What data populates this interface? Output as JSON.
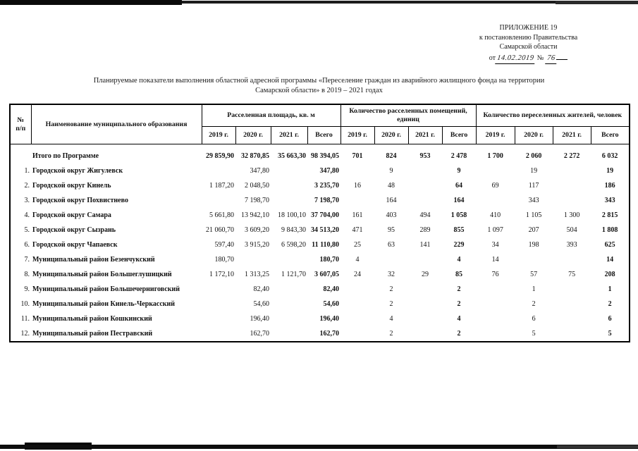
{
  "header_block": {
    "line1": "ПРИЛОЖЕНИЕ 19",
    "line2": "к постановлению Правительства",
    "line3": "Самарской области",
    "date_prefix": "от",
    "date_handwritten": "14.02.2019",
    "number_sign": "№",
    "number_handwritten": "76"
  },
  "title": {
    "line1": "Планируемые показатели выполнения областной адресной программы «Переселение граждан из аварийного жилищного фонда на территории",
    "line2": "Самарской области» в 2019 – 2021 годах"
  },
  "table": {
    "col_num_line1": "№",
    "col_num_line2": "п/п",
    "col_name": "Наименование муниципального образования",
    "groups": [
      "Расселенная площадь, кв. м",
      "Количество расселенных помещений, единиц",
      "Количество переселенных жителей, человек"
    ],
    "years": [
      "2019 г.",
      "2020 г.",
      "2021 г.",
      "Всего"
    ],
    "total_row": {
      "num": "",
      "name": "Итого по Программе",
      "values": [
        "29 859,90",
        "32 870,85",
        "35 663,30",
        "98 394,05",
        "701",
        "824",
        "953",
        "2 478",
        "1 700",
        "2 060",
        "2 272",
        "6 032"
      ]
    },
    "rows": [
      {
        "num": "1.",
        "name": "Городской округ Жигулевск",
        "values": [
          "",
          "347,80",
          "",
          "347,80",
          "",
          "9",
          "",
          "9",
          "",
          "19",
          "",
          "19"
        ]
      },
      {
        "num": "2.",
        "name": "Городской округ Кинель",
        "values": [
          "1 187,20",
          "2 048,50",
          "",
          "3 235,70",
          "16",
          "48",
          "",
          "64",
          "69",
          "117",
          "",
          "186"
        ]
      },
      {
        "num": "3.",
        "name": "Городской округ Похвистнево",
        "values": [
          "",
          "7 198,70",
          "",
          "7 198,70",
          "",
          "164",
          "",
          "164",
          "",
          "343",
          "",
          "343"
        ]
      },
      {
        "num": "4.",
        "name": "Городской округ Самара",
        "values": [
          "5 661,80",
          "13 942,10",
          "18 100,10",
          "37 704,00",
          "161",
          "403",
          "494",
          "1 058",
          "410",
          "1 105",
          "1 300",
          "2 815"
        ]
      },
      {
        "num": "5.",
        "name": "Городской округ Сызрань",
        "values": [
          "21 060,70",
          "3 609,20",
          "9 843,30",
          "34 513,20",
          "471",
          "95",
          "289",
          "855",
          "1 097",
          "207",
          "504",
          "1 808"
        ]
      },
      {
        "num": "6.",
        "name": "Городской округ Чапаевск",
        "values": [
          "597,40",
          "3 915,20",
          "6 598,20",
          "11 110,80",
          "25",
          "63",
          "141",
          "229",
          "34",
          "198",
          "393",
          "625"
        ]
      },
      {
        "num": "7.",
        "name": "Муниципальный район Безенчукский",
        "values": [
          "180,70",
          "",
          "",
          "180,70",
          "4",
          "",
          "",
          "4",
          "14",
          "",
          "",
          "14"
        ]
      },
      {
        "num": "8.",
        "name": "Муниципальный район Большеглушицкий",
        "values": [
          "1 172,10",
          "1 313,25",
          "1 121,70",
          "3 607,05",
          "24",
          "32",
          "29",
          "85",
          "76",
          "57",
          "75",
          "208"
        ]
      },
      {
        "num": "9.",
        "name": "Муниципальный район Большечерниговский",
        "values": [
          "",
          "82,40",
          "",
          "82,40",
          "",
          "2",
          "",
          "2",
          "",
          "1",
          "",
          "1"
        ]
      },
      {
        "num": "10.",
        "name": "Муниципальный район Кинель-Черкасский",
        "values": [
          "",
          "54,60",
          "",
          "54,60",
          "",
          "2",
          "",
          "2",
          "",
          "2",
          "",
          "2"
        ]
      },
      {
        "num": "11.",
        "name": "Муниципальный район Кошкинский",
        "values": [
          "",
          "196,40",
          "",
          "196,40",
          "",
          "4",
          "",
          "4",
          "",
          "6",
          "",
          "6"
        ]
      },
      {
        "num": "12.",
        "name": "Муниципальный район Пестравский",
        "values": [
          "",
          "162,70",
          "",
          "162,70",
          "",
          "2",
          "",
          "2",
          "",
          "5",
          "",
          "5"
        ]
      }
    ]
  }
}
